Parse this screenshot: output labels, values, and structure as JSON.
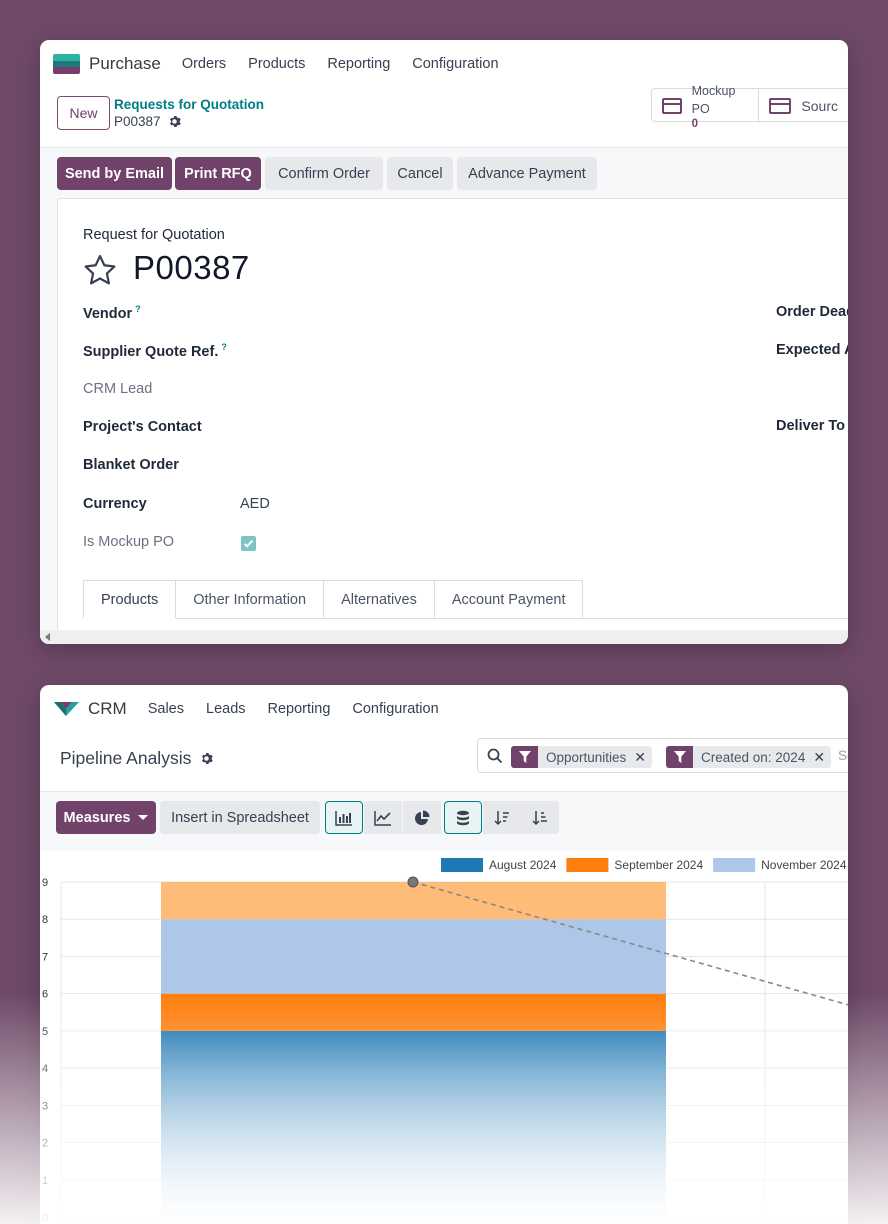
{
  "purchase": {
    "app_name": "Purchase",
    "nav": [
      "Orders",
      "Products",
      "Reporting",
      "Configuration"
    ],
    "new_button": "New",
    "breadcrumb_parent": "Requests for Quotation",
    "breadcrumb_current": "P00387",
    "smart_buttons": [
      {
        "label": "Mockup PO",
        "value": "0"
      },
      {
        "label": "Sourc",
        "value": ""
      }
    ],
    "status_buttons": {
      "send_email": "Send by Email",
      "print_rfq": "Print RFQ",
      "confirm": "Confirm Order",
      "cancel": "Cancel",
      "advance": "Advance Payment"
    },
    "form": {
      "doc_type": "Request for Quotation",
      "doc_name": "P00387",
      "vendor_label": "Vendor",
      "supplier_ref_label": "Supplier Quote Ref.",
      "help_mark": "?",
      "crm_lead_label": "CRM Lead",
      "project_contact_label": "Project's Contact",
      "blanket_order_label": "Blanket Order",
      "currency_label": "Currency",
      "currency_value": "AED",
      "mockup_label": "Is Mockup PO",
      "order_deadline_label": "Order Dead",
      "expected_label": "Expected A",
      "deliver_to_label": "Deliver To"
    },
    "tabs": [
      "Products",
      "Other Information",
      "Alternatives",
      "Account Payment"
    ]
  },
  "crm": {
    "app_name": "CRM",
    "nav": [
      "Sales",
      "Leads",
      "Reporting",
      "Configuration"
    ],
    "page_title": "Pipeline Analysis",
    "facets": [
      {
        "label": "Opportunities"
      },
      {
        "label": "Created on: 2024"
      }
    ],
    "search_overflow": "Se",
    "measures_label": "Measures",
    "insert_label": "Insert in Spreadsheet",
    "view_buttons": [
      "bar-chart-icon",
      "line-chart-icon",
      "pie-chart-icon",
      "stacked-icon",
      "sort-desc-icon",
      "sort-asc-icon"
    ]
  },
  "chart_data": {
    "type": "bar",
    "stacked": true,
    "categories": [
      ""
    ],
    "ylim": [
      0,
      9
    ],
    "yticks": [
      "0",
      "1",
      "2",
      "3",
      "4",
      "5",
      "6",
      "7",
      "8",
      "9"
    ],
    "series": [
      {
        "name": "August 2024",
        "values": [
          5
        ],
        "color": "#1f77b4"
      },
      {
        "name": "September 2024",
        "values": [
          1
        ],
        "color": "#ff7f0e"
      },
      {
        "name": "November 2024",
        "values": [
          2
        ],
        "color": "#aec7e8"
      },
      {
        "name": "",
        "values": [
          1
        ],
        "color": "#ffbb78"
      }
    ],
    "legend_position": "top",
    "trend_line": {
      "start_value": 9,
      "style": "dashed"
    },
    "grid": true
  }
}
